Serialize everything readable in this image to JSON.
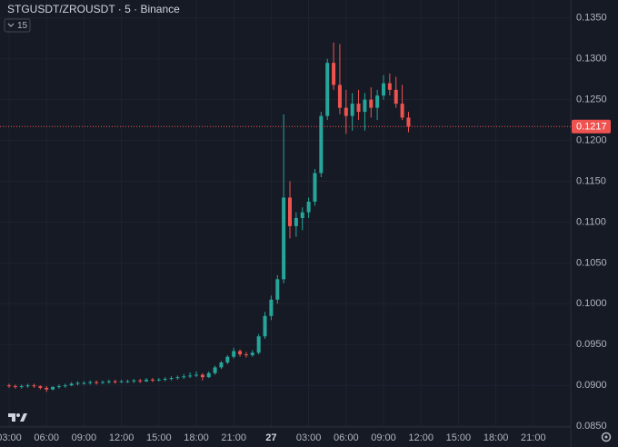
{
  "chart_data": {
    "type": "candlestick",
    "title": "STGUSDT/ZROUSDT · 5 · Binance",
    "interval_badge": "15",
    "up_color": "#26a69a",
    "down_color": "#ef5350",
    "grid": true,
    "ylim": [
      0.0849,
      0.1372
    ],
    "yticks": [
      {
        "value": 0.085,
        "label": "0.0850"
      },
      {
        "value": 0.09,
        "label": "0.0900"
      },
      {
        "value": 0.095,
        "label": "0.0950"
      },
      {
        "value": 0.1,
        "label": "0.1000"
      },
      {
        "value": 0.105,
        "label": "0.1050"
      },
      {
        "value": 0.11,
        "label": "0.1100"
      },
      {
        "value": 0.115,
        "label": "0.1150"
      },
      {
        "value": 0.12,
        "label": "0.1200"
      },
      {
        "value": 0.125,
        "label": "0.1250"
      },
      {
        "value": 0.13,
        "label": "0.1300"
      },
      {
        "value": 0.135,
        "label": "0.1350"
      }
    ],
    "last_price": 0.1217,
    "categories": [
      "03:00",
      null,
      null,
      null,
      null,
      null,
      "06:00",
      null,
      null,
      null,
      null,
      null,
      "09:00",
      null,
      null,
      null,
      null,
      null,
      "12:00",
      null,
      null,
      null,
      null,
      null,
      "15:00",
      null,
      null,
      null,
      null,
      null,
      "18:00",
      null,
      null,
      null,
      null,
      null,
      "21:00",
      null,
      null,
      null,
      null,
      null,
      "27",
      null,
      null,
      null,
      null,
      null,
      "03:00",
      null,
      null,
      null,
      null,
      null,
      "06:00",
      null,
      null,
      null,
      null,
      null,
      "09:00",
      null,
      null,
      null,
      null,
      null,
      "12:00",
      null,
      null,
      null,
      null,
      null,
      "15:00",
      null,
      null,
      null,
      null,
      null,
      "18:00",
      null,
      null,
      null,
      null,
      null,
      "21:00",
      null,
      null,
      null,
      null,
      null
    ],
    "open": [
      0.09,
      0.0899,
      0.0898,
      0.0899,
      0.09,
      0.0899,
      0.0897,
      0.0895,
      0.0898,
      0.0899,
      0.09,
      0.0902,
      0.0903,
      0.0903,
      0.0904,
      0.0903,
      0.0904,
      0.0905,
      0.0904,
      0.0905,
      0.0905,
      0.0906,
      0.0905,
      0.0907,
      0.0906,
      0.0907,
      0.0908,
      0.0909,
      0.091,
      0.0911,
      0.0912,
      0.0913,
      0.091,
      0.0915,
      0.0922,
      0.0928,
      0.0935,
      0.0942,
      0.0938,
      0.0937,
      0.094,
      0.096,
      0.0985,
      0.1005,
      0.103,
      0.113,
      0.1095,
      0.1105,
      0.1112,
      0.1125,
      0.116,
      0.123,
      0.1295,
      0.1268,
      0.124,
      0.123,
      0.1245,
      0.1235,
      0.125,
      0.124,
      0.1255,
      0.127,
      0.1262,
      0.1245,
      0.1228,
      null,
      null,
      null,
      null,
      null,
      null,
      null,
      null,
      null,
      null,
      null,
      null,
      null,
      null,
      null,
      null,
      null,
      null,
      null,
      null,
      null,
      null,
      null,
      null,
      null
    ],
    "high": [
      0.0902,
      0.0901,
      0.0901,
      0.0902,
      0.0902,
      0.09,
      0.0899,
      0.0899,
      0.0901,
      0.0902,
      0.0904,
      0.0905,
      0.0905,
      0.0906,
      0.0906,
      0.0906,
      0.0907,
      0.0907,
      0.0907,
      0.0907,
      0.0908,
      0.0908,
      0.0909,
      0.0909,
      0.0909,
      0.091,
      0.0911,
      0.0912,
      0.0914,
      0.0916,
      0.0917,
      0.0915,
      0.0917,
      0.0924,
      0.093,
      0.0937,
      0.0946,
      0.0944,
      0.0941,
      0.0943,
      0.0963,
      0.099,
      0.101,
      0.1035,
      0.1232,
      0.115,
      0.1112,
      0.1118,
      0.113,
      0.1165,
      0.1235,
      0.13,
      0.132,
      0.1318,
      0.1262,
      0.1258,
      0.1262,
      0.1258,
      0.1265,
      0.1262,
      0.128,
      0.1282,
      0.1278,
      0.1268,
      0.1235,
      null,
      null,
      null,
      null,
      null,
      null,
      null,
      null,
      null,
      null,
      null,
      null,
      null,
      null,
      null,
      null,
      null,
      null,
      null,
      null,
      null,
      null,
      null,
      null,
      null
    ],
    "low": [
      0.0897,
      0.0896,
      0.0896,
      0.0897,
      0.0897,
      0.0895,
      0.0892,
      0.0894,
      0.0896,
      0.0897,
      0.0899,
      0.09,
      0.0901,
      0.0901,
      0.0901,
      0.0902,
      0.0902,
      0.0902,
      0.0903,
      0.0903,
      0.0903,
      0.0903,
      0.0904,
      0.0904,
      0.0905,
      0.0905,
      0.0906,
      0.0907,
      0.0908,
      0.0909,
      0.091,
      0.0906,
      0.0909,
      0.0913,
      0.092,
      0.0926,
      0.0933,
      0.0935,
      0.0934,
      0.0935,
      0.0938,
      0.0957,
      0.098,
      0.1,
      0.1025,
      0.108,
      0.1082,
      0.109,
      0.1105,
      0.112,
      0.1155,
      0.1225,
      0.1262,
      0.1232,
      0.1208,
      0.1212,
      0.1225,
      0.1212,
      0.1228,
      0.1225,
      0.125,
      0.1255,
      0.124,
      0.1225,
      0.121,
      null,
      null,
      null,
      null,
      null,
      null,
      null,
      null,
      null,
      null,
      null,
      null,
      null,
      null,
      null,
      null,
      null,
      null,
      null,
      null,
      null,
      null,
      null,
      null,
      null
    ],
    "close": [
      0.0899,
      0.0898,
      0.0899,
      0.09,
      0.0899,
      0.0897,
      0.0895,
      0.0898,
      0.0899,
      0.09,
      0.0902,
      0.0903,
      0.0903,
      0.0904,
      0.0903,
      0.0904,
      0.0905,
      0.0904,
      0.0905,
      0.0905,
      0.0906,
      0.0905,
      0.0907,
      0.0906,
      0.0907,
      0.0908,
      0.0909,
      0.091,
      0.0911,
      0.0912,
      0.0913,
      0.091,
      0.0915,
      0.0922,
      0.0928,
      0.0935,
      0.0942,
      0.0938,
      0.0937,
      0.094,
      0.096,
      0.0985,
      0.1005,
      0.103,
      0.113,
      0.1095,
      0.1105,
      0.1112,
      0.1125,
      0.116,
      0.123,
      0.1295,
      0.1268,
      0.124,
      0.123,
      0.1245,
      0.1235,
      0.125,
      0.124,
      0.1255,
      0.127,
      0.1262,
      0.1245,
      0.1228,
      0.1217,
      null,
      null,
      null,
      null,
      null,
      null,
      null,
      null,
      null,
      null,
      null,
      null,
      null,
      null,
      null,
      null,
      null,
      null,
      null,
      null,
      null,
      null,
      null,
      null,
      null
    ]
  }
}
